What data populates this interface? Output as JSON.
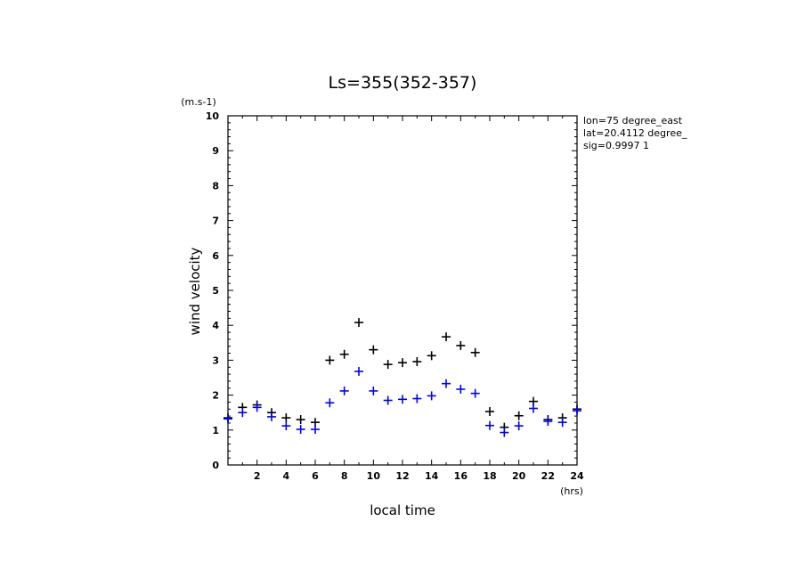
{
  "chart_data": {
    "type": "scatter",
    "title": "Ls=355(352-357)",
    "xlabel": "local time",
    "x_unit": "(hrs)",
    "ylabel": "wind velocity",
    "y_unit": "(m.s-1)",
    "xlim": [
      0,
      24
    ],
    "ylim": [
      0,
      10
    ],
    "x_tick_labels": [
      "2",
      "4",
      "6",
      "8",
      "10",
      "12",
      "14",
      "16",
      "18",
      "20",
      "22",
      "24"
    ],
    "y_tick_labels": [
      "0",
      "1",
      "2",
      "3",
      "4",
      "5",
      "6",
      "7",
      "8",
      "9",
      "10"
    ],
    "info_lines": [
      "lon=75 degree_east",
      "lat=20.4112 degree_",
      "sig=0.9997 1"
    ],
    "series": [
      {
        "color": "#000000",
        "x": [
          0,
          1,
          2,
          3,
          4,
          5,
          6,
          7,
          8,
          9,
          10,
          11,
          12,
          13,
          14,
          15,
          16,
          17,
          18,
          19,
          20,
          21,
          22,
          23,
          24
        ],
        "values": [
          1.35,
          1.65,
          1.72,
          1.5,
          1.35,
          1.3,
          1.22,
          3.0,
          3.17,
          4.08,
          3.3,
          2.88,
          2.93,
          2.96,
          3.13,
          3.67,
          3.42,
          3.22,
          1.53,
          1.08,
          1.41,
          1.82,
          1.3,
          1.35,
          1.6
        ]
      },
      {
        "color": "#0000ff",
        "x": [
          0,
          1,
          2,
          3,
          4,
          5,
          6,
          7,
          8,
          9,
          10,
          11,
          12,
          13,
          14,
          15,
          16,
          17,
          18,
          19,
          20,
          21,
          22,
          23,
          24
        ],
        "values": [
          1.32,
          1.5,
          1.65,
          1.38,
          1.12,
          1.02,
          1.02,
          1.78,
          2.12,
          2.68,
          2.12,
          1.85,
          1.88,
          1.9,
          1.98,
          2.33,
          2.17,
          2.05,
          1.13,
          0.93,
          1.12,
          1.62,
          1.25,
          1.22,
          1.55
        ]
      }
    ]
  }
}
